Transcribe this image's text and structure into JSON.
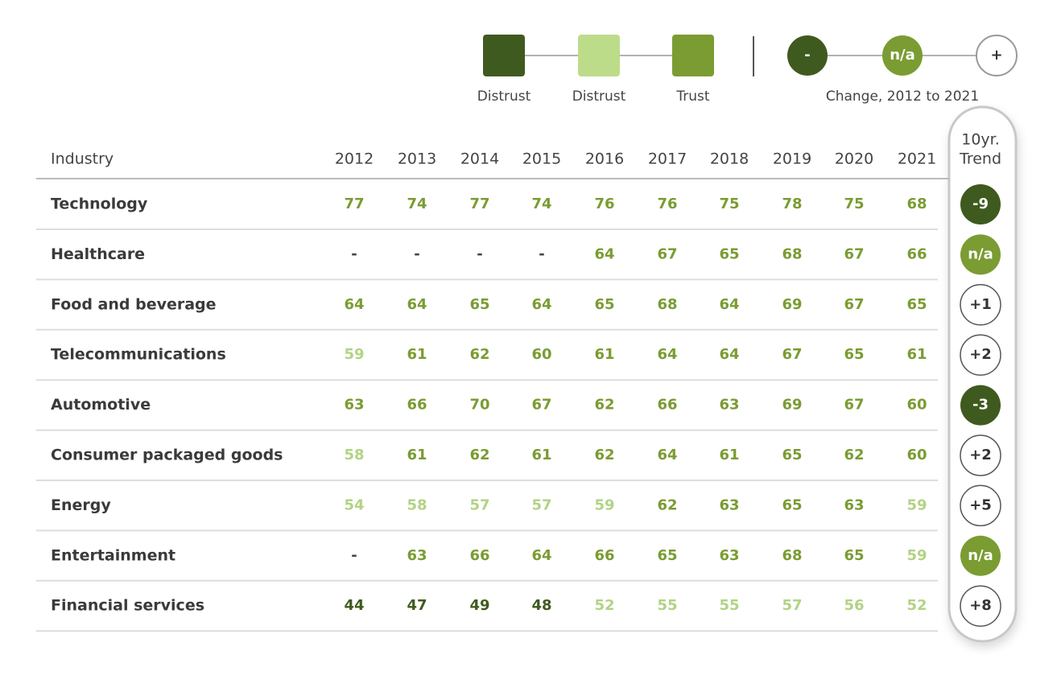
{
  "legend": {
    "squares": [
      {
        "label": "Distrust",
        "color": "#3f5a1e"
      },
      {
        "label": "Distrust",
        "color": "#bcdc8a"
      },
      {
        "label": "Trust",
        "color": "#7a9c32"
      }
    ],
    "circles": [
      {
        "label": "-",
        "color": "#3f5a1e"
      },
      {
        "label": "n/a",
        "color": "#7a9c32"
      },
      {
        "label": "+",
        "color": "#ffffff"
      }
    ],
    "circles_caption": "Change, 2012 to 2021"
  },
  "table": {
    "header": {
      "industry": "Industry",
      "years": [
        "2012",
        "2013",
        "2014",
        "2015",
        "2016",
        "2017",
        "2018",
        "2019",
        "2020",
        "2021"
      ],
      "trend": [
        "10yr.",
        "Trend"
      ]
    },
    "rows": [
      {
        "industry": "Technology",
        "values": [
          77,
          74,
          77,
          74,
          76,
          76,
          75,
          78,
          75,
          68
        ],
        "trend": "-9"
      },
      {
        "industry": "Healthcare",
        "values": [
          "-",
          "-",
          "-",
          "-",
          64,
          67,
          65,
          68,
          67,
          66
        ],
        "trend": "n/a"
      },
      {
        "industry": "Food and beverage",
        "values": [
          64,
          64,
          65,
          64,
          65,
          68,
          64,
          69,
          67,
          65
        ],
        "trend": "+1"
      },
      {
        "industry": "Telecommunications",
        "values": [
          59,
          61,
          62,
          60,
          61,
          64,
          64,
          67,
          65,
          61
        ],
        "trend": "+2"
      },
      {
        "industry": "Automotive",
        "values": [
          63,
          66,
          70,
          67,
          62,
          66,
          63,
          69,
          67,
          60
        ],
        "trend": "-3"
      },
      {
        "industry": "Consumer packaged goods",
        "values": [
          58,
          61,
          62,
          61,
          62,
          64,
          61,
          65,
          62,
          60
        ],
        "trend": "+2"
      },
      {
        "industry": "Energy",
        "values": [
          54,
          58,
          57,
          57,
          59,
          62,
          63,
          65,
          63,
          59
        ],
        "trend": "+5"
      },
      {
        "industry": "Entertainment",
        "values": [
          "-",
          63,
          66,
          64,
          66,
          65,
          63,
          68,
          65,
          59
        ],
        "trend": "n/a"
      },
      {
        "industry": "Financial services",
        "values": [
          44,
          47,
          49,
          48,
          52,
          55,
          55,
          57,
          56,
          52
        ],
        "trend": "+8"
      }
    ]
  }
}
